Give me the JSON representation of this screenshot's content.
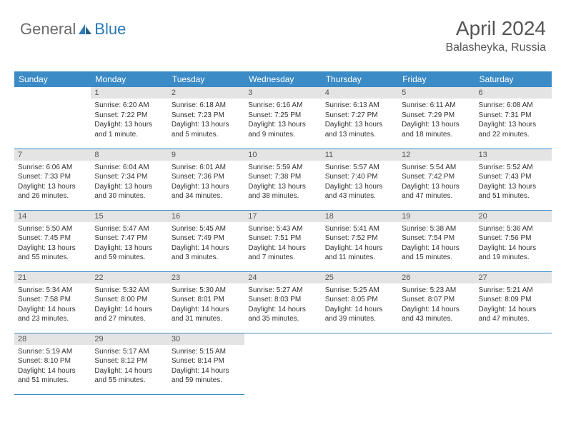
{
  "brand": {
    "general": "General",
    "blue": "Blue"
  },
  "header": {
    "month_title": "April 2024",
    "location": "Balasheyka, Russia"
  },
  "daynames": [
    "Sunday",
    "Monday",
    "Tuesday",
    "Wednesday",
    "Thursday",
    "Friday",
    "Saturday"
  ],
  "colors": {
    "header_bg": "#3b8bc6",
    "daynum_bg": "#e4e4e4",
    "accent": "#2a7ab8"
  },
  "cells": [
    {
      "blank": true
    },
    {
      "n": "1",
      "sr": "6:20 AM",
      "ss": "7:22 PM",
      "dl": "13 hours and 1 minute."
    },
    {
      "n": "2",
      "sr": "6:18 AM",
      "ss": "7:23 PM",
      "dl": "13 hours and 5 minutes."
    },
    {
      "n": "3",
      "sr": "6:16 AM",
      "ss": "7:25 PM",
      "dl": "13 hours and 9 minutes."
    },
    {
      "n": "4",
      "sr": "6:13 AM",
      "ss": "7:27 PM",
      "dl": "13 hours and 13 minutes."
    },
    {
      "n": "5",
      "sr": "6:11 AM",
      "ss": "7:29 PM",
      "dl": "13 hours and 18 minutes."
    },
    {
      "n": "6",
      "sr": "6:08 AM",
      "ss": "7:31 PM",
      "dl": "13 hours and 22 minutes."
    },
    {
      "n": "7",
      "sr": "6:06 AM",
      "ss": "7:33 PM",
      "dl": "13 hours and 26 minutes."
    },
    {
      "n": "8",
      "sr": "6:04 AM",
      "ss": "7:34 PM",
      "dl": "13 hours and 30 minutes."
    },
    {
      "n": "9",
      "sr": "6:01 AM",
      "ss": "7:36 PM",
      "dl": "13 hours and 34 minutes."
    },
    {
      "n": "10",
      "sr": "5:59 AM",
      "ss": "7:38 PM",
      "dl": "13 hours and 38 minutes."
    },
    {
      "n": "11",
      "sr": "5:57 AM",
      "ss": "7:40 PM",
      "dl": "13 hours and 43 minutes."
    },
    {
      "n": "12",
      "sr": "5:54 AM",
      "ss": "7:42 PM",
      "dl": "13 hours and 47 minutes."
    },
    {
      "n": "13",
      "sr": "5:52 AM",
      "ss": "7:43 PM",
      "dl": "13 hours and 51 minutes."
    },
    {
      "n": "14",
      "sr": "5:50 AM",
      "ss": "7:45 PM",
      "dl": "13 hours and 55 minutes."
    },
    {
      "n": "15",
      "sr": "5:47 AM",
      "ss": "7:47 PM",
      "dl": "13 hours and 59 minutes."
    },
    {
      "n": "16",
      "sr": "5:45 AM",
      "ss": "7:49 PM",
      "dl": "14 hours and 3 minutes."
    },
    {
      "n": "17",
      "sr": "5:43 AM",
      "ss": "7:51 PM",
      "dl": "14 hours and 7 minutes."
    },
    {
      "n": "18",
      "sr": "5:41 AM",
      "ss": "7:52 PM",
      "dl": "14 hours and 11 minutes."
    },
    {
      "n": "19",
      "sr": "5:38 AM",
      "ss": "7:54 PM",
      "dl": "14 hours and 15 minutes."
    },
    {
      "n": "20",
      "sr": "5:36 AM",
      "ss": "7:56 PM",
      "dl": "14 hours and 19 minutes."
    },
    {
      "n": "21",
      "sr": "5:34 AM",
      "ss": "7:58 PM",
      "dl": "14 hours and 23 minutes."
    },
    {
      "n": "22",
      "sr": "5:32 AM",
      "ss": "8:00 PM",
      "dl": "14 hours and 27 minutes."
    },
    {
      "n": "23",
      "sr": "5:30 AM",
      "ss": "8:01 PM",
      "dl": "14 hours and 31 minutes."
    },
    {
      "n": "24",
      "sr": "5:27 AM",
      "ss": "8:03 PM",
      "dl": "14 hours and 35 minutes."
    },
    {
      "n": "25",
      "sr": "5:25 AM",
      "ss": "8:05 PM",
      "dl": "14 hours and 39 minutes."
    },
    {
      "n": "26",
      "sr": "5:23 AM",
      "ss": "8:07 PM",
      "dl": "14 hours and 43 minutes."
    },
    {
      "n": "27",
      "sr": "5:21 AM",
      "ss": "8:09 PM",
      "dl": "14 hours and 47 minutes."
    },
    {
      "n": "28",
      "sr": "5:19 AM",
      "ss": "8:10 PM",
      "dl": "14 hours and 51 minutes."
    },
    {
      "n": "29",
      "sr": "5:17 AM",
      "ss": "8:12 PM",
      "dl": "14 hours and 55 minutes."
    },
    {
      "n": "30",
      "sr": "5:15 AM",
      "ss": "8:14 PM",
      "dl": "14 hours and 59 minutes."
    },
    {
      "blank": true
    },
    {
      "blank": true
    },
    {
      "blank": true
    },
    {
      "blank": true
    }
  ],
  "labels": {
    "sunrise": "Sunrise: ",
    "sunset": "Sunset: ",
    "daylight": "Daylight: "
  }
}
